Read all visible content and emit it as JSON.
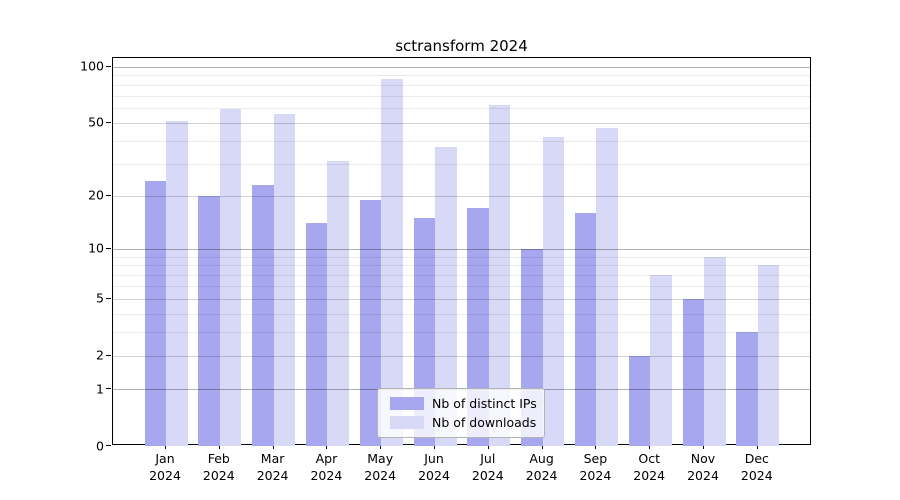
{
  "chart_data": {
    "type": "bar",
    "title": "sctransform 2024",
    "categories": [
      "Jan",
      "Feb",
      "Mar",
      "Apr",
      "May",
      "Jun",
      "Jul",
      "Aug",
      "Sep",
      "Oct",
      "Nov",
      "Dec"
    ],
    "category_year": "2024",
    "series": [
      {
        "name": "Nb of distinct IPs",
        "color": "#a7a7ef",
        "values": [
          24,
          20,
          23,
          14,
          19,
          15,
          17,
          10,
          16,
          2,
          5,
          3
        ]
      },
      {
        "name": "Nb of downloads",
        "color": "#d8d8f7",
        "values": [
          51,
          59,
          56,
          31,
          86,
          37,
          62,
          42,
          47,
          7,
          9,
          8
        ]
      }
    ],
    "xlabel": "",
    "ylabel": "",
    "yscale": "log1p",
    "ylim": [
      0,
      112
    ],
    "yticks_labeled": [
      0,
      1,
      2,
      5,
      10,
      20,
      50,
      100
    ],
    "yticks_minor": [
      3,
      4,
      6,
      7,
      8,
      9,
      30,
      40,
      60,
      70,
      80,
      90
    ],
    "grid": true,
    "legend_position": "lower center"
  },
  "colors": {
    "axis": "#000000",
    "background": "#ffffff",
    "bar_distinct_ips": "#a7a7ef",
    "bar_downloads": "#d8d8f7"
  }
}
